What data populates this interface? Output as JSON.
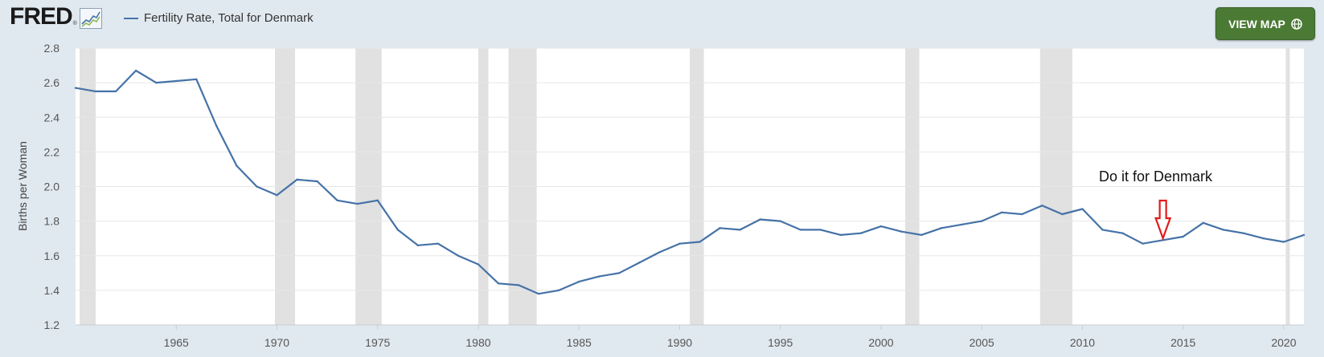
{
  "header": {
    "logo_text": "FRED",
    "logo_mark": "®",
    "legend_label": "Fertility Rate, Total for Denmark",
    "view_map_label": "VIEW MAP",
    "view_map_icon": "globe-icon"
  },
  "colors": {
    "series": "#4572a7",
    "recession": "#e1e1e1",
    "button": "#4b7a35",
    "background": "#e1e9f0"
  },
  "annotation": {
    "text": "Do it for Denmark",
    "marker": "red-down-arrow",
    "target_x": 2014
  },
  "chart_data": {
    "type": "line",
    "title": "",
    "xlabel": "",
    "ylabel": "Births per Woman",
    "xlim": [
      1960,
      2021
    ],
    "ylim": [
      1.2,
      2.8
    ],
    "yticks": [
      1.2,
      1.4,
      1.6,
      1.8,
      2.0,
      2.2,
      2.4,
      2.6,
      2.8
    ],
    "ytick_labels": [
      "1.2",
      "1.4",
      "1.6",
      "1.8",
      "2.0",
      "2.2",
      "2.4",
      "2.6",
      "2.8"
    ],
    "xticks": [
      1965,
      1970,
      1975,
      1980,
      1985,
      1990,
      1995,
      2000,
      2005,
      2010,
      2015,
      2020
    ],
    "xtick_labels": [
      "1965",
      "1970",
      "1975",
      "1980",
      "1985",
      "1990",
      "1995",
      "2000",
      "2005",
      "2010",
      "2015",
      "2020"
    ],
    "grid": "horizontal",
    "legend": "top-left",
    "recessions": [
      [
        1960.2,
        1961.0
      ],
      [
        1969.9,
        1970.9
      ],
      [
        1973.9,
        1975.2
      ],
      [
        1980.0,
        1980.5
      ],
      [
        1981.5,
        1982.9
      ],
      [
        1990.5,
        1991.2
      ],
      [
        2001.2,
        2001.9
      ],
      [
        2007.9,
        2009.5
      ],
      [
        2020.1,
        2020.3
      ]
    ],
    "series": [
      {
        "name": "Fertility Rate, Total for Denmark",
        "x": [
          1960,
          1961,
          1962,
          1963,
          1964,
          1965,
          1966,
          1967,
          1968,
          1969,
          1970,
          1971,
          1972,
          1973,
          1974,
          1975,
          1976,
          1977,
          1978,
          1979,
          1980,
          1981,
          1982,
          1983,
          1984,
          1985,
          1986,
          1987,
          1988,
          1989,
          1990,
          1991,
          1992,
          1993,
          1994,
          1995,
          1996,
          1997,
          1998,
          1999,
          2000,
          2001,
          2002,
          2003,
          2004,
          2005,
          2006,
          2007,
          2008,
          2009,
          2010,
          2011,
          2012,
          2013,
          2014,
          2015,
          2016,
          2017,
          2018,
          2019,
          2020,
          2021
        ],
        "values": [
          2.57,
          2.55,
          2.55,
          2.67,
          2.6,
          2.61,
          2.62,
          2.35,
          2.12,
          2.0,
          1.95,
          2.04,
          2.03,
          1.92,
          1.9,
          1.92,
          1.75,
          1.66,
          1.67,
          1.6,
          1.55,
          1.44,
          1.43,
          1.38,
          1.4,
          1.45,
          1.48,
          1.5,
          1.56,
          1.62,
          1.67,
          1.68,
          1.76,
          1.75,
          1.81,
          1.8,
          1.75,
          1.75,
          1.72,
          1.73,
          1.77,
          1.74,
          1.72,
          1.76,
          1.78,
          1.8,
          1.85,
          1.84,
          1.89,
          1.84,
          1.87,
          1.75,
          1.73,
          1.67,
          1.69,
          1.71,
          1.79,
          1.75,
          1.73,
          1.7,
          1.68,
          1.72
        ]
      }
    ]
  }
}
